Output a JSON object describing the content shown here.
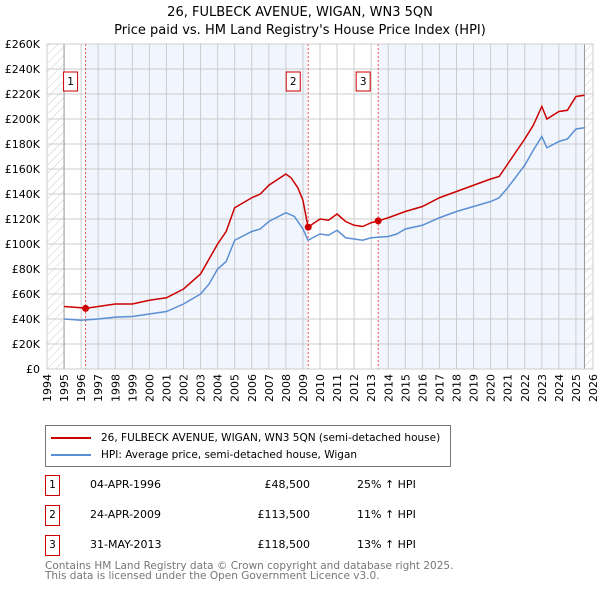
{
  "title": "26, FULBECK AVENUE, WIGAN, WN3 5QN",
  "subtitle": "Price paid vs. HM Land Registry's House Price Index (HPI)",
  "chart_data": {
    "type": "line",
    "xlim": [
      1994,
      2026
    ],
    "ylim": [
      0,
      260000
    ],
    "yticks": [
      0,
      20000,
      40000,
      60000,
      80000,
      100000,
      120000,
      140000,
      160000,
      180000,
      200000,
      220000,
      240000,
      260000
    ],
    "ytick_labels": [
      "£0",
      "£20K",
      "£40K",
      "£60K",
      "£80K",
      "£100K",
      "£120K",
      "£140K",
      "£160K",
      "£180K",
      "£200K",
      "£220K",
      "£240K",
      "£260K"
    ],
    "xticks": [
      1994,
      1995,
      1996,
      1997,
      1998,
      1999,
      2000,
      2001,
      2002,
      2003,
      2004,
      2005,
      2006,
      2007,
      2008,
      2009,
      2010,
      2011,
      2012,
      2013,
      2014,
      2015,
      2016,
      2017,
      2018,
      2019,
      2020,
      2021,
      2022,
      2023,
      2024,
      2025,
      2026
    ],
    "grid": true,
    "data_range": [
      1995,
      2025.5
    ],
    "series": [
      {
        "name": "26, FULBECK AVENUE, WIGAN, WN3 5QN (semi-detached house)",
        "color": "#cc0000",
        "x": [
          1995,
          1996,
          1996.26,
          1997,
          1998,
          1999,
          2000,
          2001,
          2002,
          2003,
          2003.5,
          2004,
          2004.5,
          2005,
          2006,
          2006.5,
          2007,
          2008,
          2008.3,
          2008.7,
          2009,
          2009.3,
          2010,
          2010.5,
          2011,
          2011.5,
          2012,
          2012.5,
          2013,
          2013.41,
          2014,
          2015,
          2016,
          2017,
          2018,
          2019,
          2020,
          2020.5,
          2021,
          2022,
          2022.5,
          2023,
          2023.3,
          2024,
          2024.5,
          2025,
          2025.5
        ],
        "y": [
          50000,
          49000,
          48500,
          50000,
          52000,
          52000,
          55000,
          57000,
          64000,
          76000,
          88000,
          100000,
          110000,
          129000,
          137000,
          140000,
          147000,
          156000,
          153000,
          145000,
          135000,
          113500,
          120000,
          119000,
          124000,
          118000,
          115000,
          114000,
          117000,
          118500,
          121000,
          126000,
          130000,
          137000,
          142000,
          147000,
          152000,
          154000,
          164000,
          184000,
          195000,
          210000,
          200000,
          206000,
          207000,
          218000,
          219000
        ]
      },
      {
        "name": "HPI: Average price, semi-detached house, Wigan",
        "color": "#5b8fd4",
        "x": [
          1995,
          1996,
          1997,
          1998,
          1999,
          2000,
          2001,
          2002,
          2003,
          2003.5,
          2004,
          2004.5,
          2005,
          2006,
          2006.5,
          2007,
          2008,
          2008.5,
          2009,
          2009.3,
          2010,
          2010.5,
          2011,
          2011.5,
          2012,
          2012.5,
          2013,
          2014,
          2014.5,
          2015,
          2016,
          2017,
          2018,
          2019,
          2020,
          2020.5,
          2021,
          2022,
          2022.5,
          2023,
          2023.3,
          2024,
          2024.5,
          2025,
          2025.5
        ],
        "y": [
          40000,
          39000,
          40000,
          41500,
          42000,
          44000,
          46000,
          52000,
          60000,
          68000,
          80000,
          86000,
          103000,
          110000,
          112000,
          118000,
          125000,
          122000,
          112000,
          103000,
          108000,
          107000,
          111000,
          105000,
          104000,
          103000,
          105000,
          106000,
          108000,
          112000,
          115000,
          121000,
          126000,
          130000,
          134000,
          137000,
          145000,
          163000,
          175000,
          186000,
          177000,
          182000,
          184000,
          192000,
          193000
        ]
      }
    ],
    "sales": [
      {
        "label": "1",
        "x": 1996.26,
        "date": "04-APR-1996",
        "price": 48500,
        "price_text": "£48,500",
        "hpi_text": "25% ↑ HPI"
      },
      {
        "label": "2",
        "x": 2009.31,
        "date": "24-APR-2009",
        "price": 113500,
        "price_text": "£113,500",
        "hpi_text": "11% ↑ HPI"
      },
      {
        "label": "3",
        "x": 2013.41,
        "date": "31-MAY-2013",
        "price": 118500,
        "price_text": "£118,500",
        "hpi_text": "13% ↑ HPI"
      }
    ],
    "legend_position": "below"
  },
  "footer": {
    "line1": "Contains HM Land Registry data © Crown copyright and database right 2025.",
    "line2": "This data is licensed under the Open Government Licence v3.0."
  }
}
